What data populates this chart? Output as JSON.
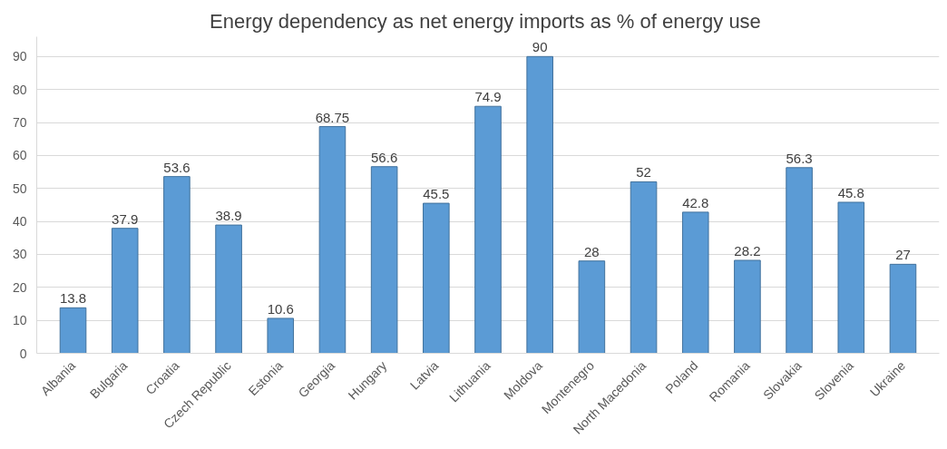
{
  "chart_data": {
    "type": "bar",
    "title": "Energy dependency  as net energy imports as % of energy use",
    "categories": [
      "Albania",
      "Bulgaria",
      "Croatia",
      "Czech Republic",
      "Estonia",
      "Georgia",
      "Hungary",
      "Latvia",
      "Lithuania",
      "Moldova",
      "Montenegro",
      "North Macedonia",
      "Poland",
      "Romania",
      "Slovakia",
      "Slovenia",
      "Ukraine"
    ],
    "values": [
      13.8,
      37.9,
      53.6,
      38.9,
      10.6,
      68.75,
      56.6,
      45.5,
      74.9,
      90,
      28,
      52,
      42.8,
      28.2,
      56.3,
      45.8,
      27
    ],
    "color": "#5b9bd5",
    "ylim": [
      0,
      96
    ],
    "yticks": [
      0,
      10,
      20,
      30,
      40,
      50,
      60,
      70,
      80,
      90
    ],
    "grid": "y",
    "data_labels": true
  }
}
